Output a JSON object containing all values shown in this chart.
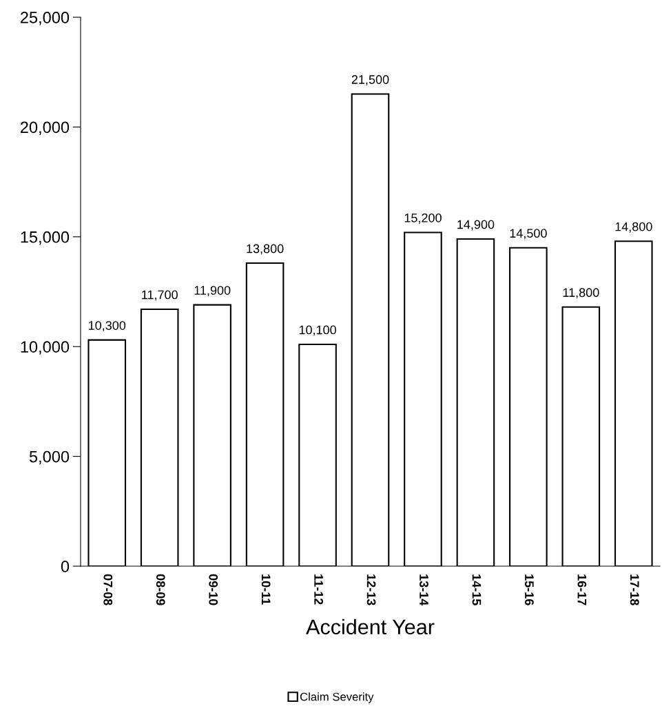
{
  "chart_data": {
    "type": "bar",
    "xlabel": "Accident Year",
    "categories": [
      "07-08",
      "08-09",
      "09-10",
      "10-11",
      "11-12",
      "12-13",
      "13-14",
      "14-15",
      "15-16",
      "16-17",
      "17-18"
    ],
    "series": [
      {
        "name": "Claim Severity",
        "color": "#ffffff",
        "values": [
          10300,
          11700,
          11900,
          13800,
          10100,
          21500,
          15200,
          14900,
          14500,
          11800,
          14800
        ],
        "value_labels": [
          "10,300",
          "11,700",
          "11,900",
          "13,800",
          "10,100",
          "21,500",
          "15,200",
          "14,900",
          "14,500",
          "11,800",
          "14,800"
        ]
      }
    ],
    "ylim": [
      0,
      25000
    ],
    "yticks": [
      0,
      {
        "value": 5000,
        "label": "5,000"
      },
      {
        "value": 10000,
        "label": "10,000"
      },
      {
        "value": 15000,
        "label": "15,000"
      },
      {
        "value": 20000,
        "label": "20,000"
      },
      {
        "value": 25000,
        "label": "25,000"
      }
    ],
    "grid": false,
    "legend": "bottom"
  }
}
